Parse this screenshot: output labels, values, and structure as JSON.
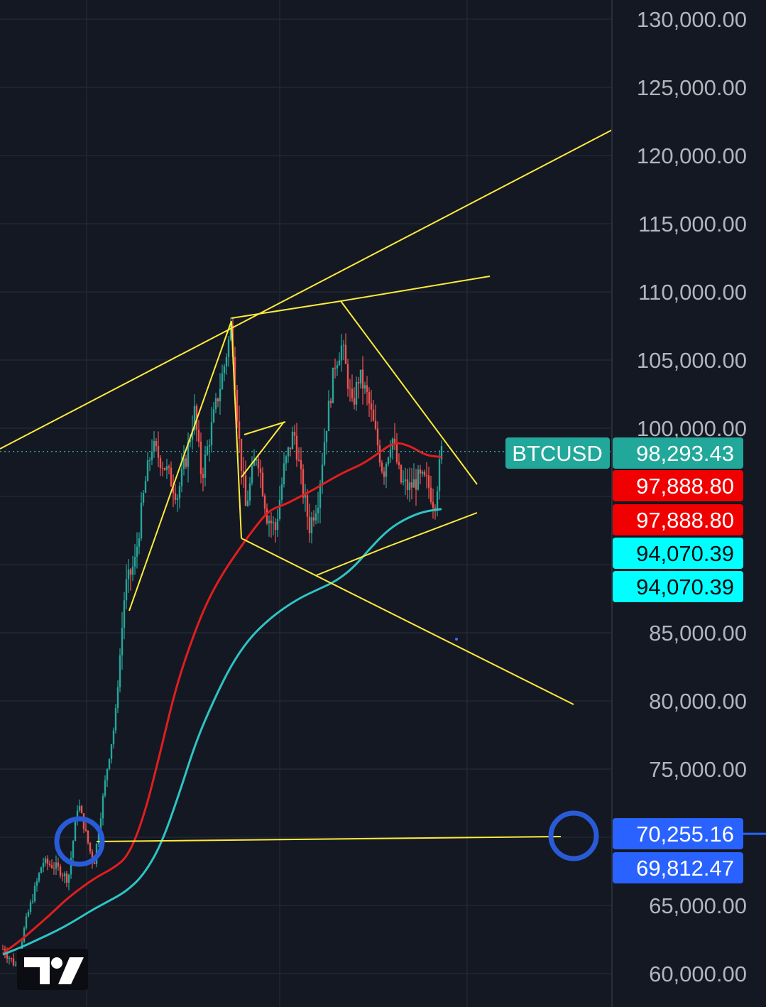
{
  "chart_data": {
    "type": "candlestick",
    "symbol": "BTCUSD",
    "y_axis": {
      "ticks": [
        "130,000.00",
        "125,000.00",
        "120,000.00",
        "115,000.00",
        "110,000.00",
        "105,000.00",
        "100,000.00",
        "85,000.00",
        "80,000.00",
        "75,000.00",
        "65,000.00",
        "60,000.00"
      ],
      "tick_values": [
        130000,
        125000,
        120000,
        115000,
        110000,
        105000,
        100000,
        85000,
        80000,
        75000,
        65000,
        60000
      ],
      "range": [
        59000,
        131200
      ]
    },
    "price_tags": [
      {
        "label": "BTCUSD",
        "value": 98293.43,
        "text": "98,293.43",
        "color": "#22a89a",
        "text_color": "#ffffff"
      },
      {
        "value": 97888.8,
        "text": "97,888.80",
        "color": "#f00000",
        "text_color": "#ffffff"
      },
      {
        "value": 97888.8,
        "text": "97,888.80",
        "color": "#f00000",
        "text_color": "#ffffff"
      },
      {
        "value": 94070.39,
        "text": "94,070.39",
        "color": "#00ffff",
        "text_color": "#0b0d12"
      },
      {
        "value": 94070.39,
        "text": "94,070.39",
        "color": "#00ffff",
        "text_color": "#0b0d12"
      },
      {
        "value": 70255.16,
        "text": "70,255.16",
        "color": "#2962ff",
        "text_color": "#ffffff"
      },
      {
        "value": 69812.47,
        "text": "69,812.47",
        "color": "#2962ff",
        "text_color": "#ffffff"
      }
    ],
    "last_price": 98293.43,
    "moving_averages": [
      {
        "color": "#e01e1e",
        "values": [
          61500,
          62300,
          63300,
          64300,
          65400,
          66300,
          67100,
          67700,
          68600,
          71500,
          76000,
          80800,
          84300,
          87200,
          89300,
          91000,
          92600,
          94000,
          94400,
          95000,
          95600,
          96300,
          96900,
          97400,
          98200,
          99000,
          98700,
          98000,
          97888.8
        ]
      },
      {
        "color": "#2ec4c4",
        "values": [
          61400,
          61900,
          62500,
          63100,
          63800,
          64600,
          65300,
          66000,
          67200,
          69400,
          73000,
          77000,
          80000,
          82600,
          84500,
          85800,
          86800,
          87600,
          88200,
          88800,
          89800,
          91300,
          92600,
          93400,
          93900,
          94070.39
        ]
      }
    ],
    "colors": {
      "up": "#26a69a",
      "down": "#ef5350",
      "trendline": "#ffeb3b",
      "grid": "#232733",
      "marker_circle": "#2a5bd7"
    }
  },
  "watermark": "TV"
}
